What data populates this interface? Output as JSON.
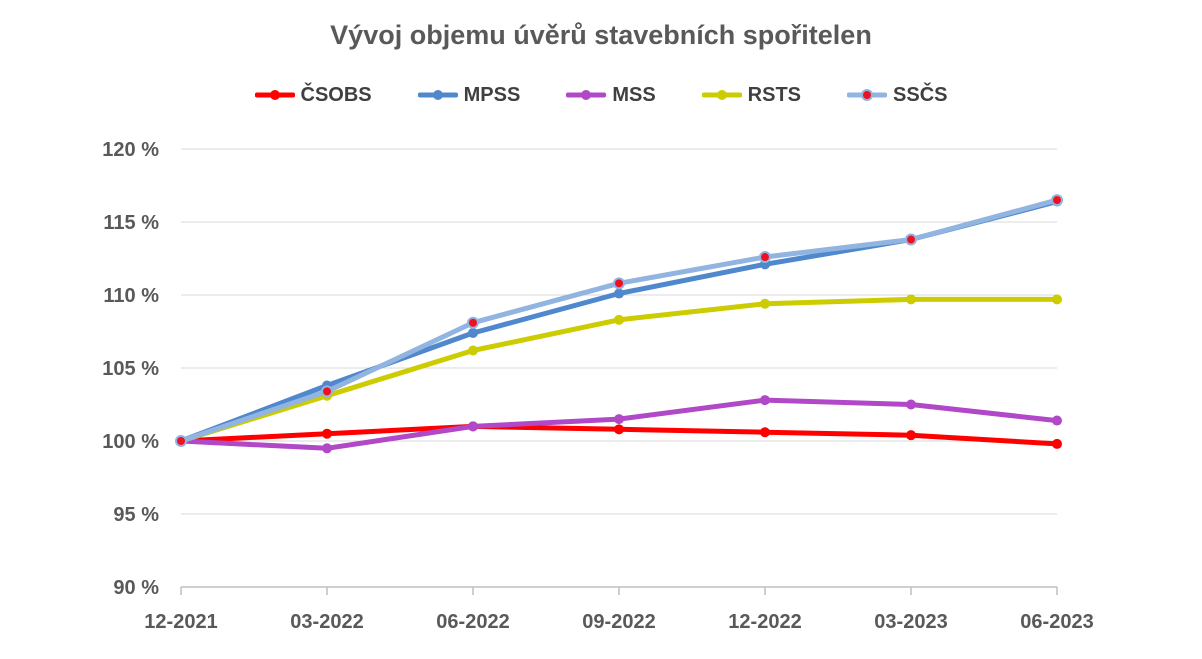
{
  "chart_data": {
    "type": "line",
    "title": "Vývoj objemu úvěrů stavebních spořitelen",
    "xlabel": "",
    "ylabel": "",
    "categories": [
      "12-2021",
      "03-2022",
      "06-2022",
      "09-2022",
      "12-2022",
      "03-2023",
      "06-2023"
    ],
    "ylim": [
      90,
      120
    ],
    "yticks": [
      90,
      95,
      100,
      105,
      110,
      115,
      120
    ],
    "ytick_labels": [
      "90 %",
      "95 %",
      "100 %",
      "105 %",
      "110 %",
      "115 %",
      "120 %"
    ],
    "grid": true,
    "legend_position": "top",
    "series": [
      {
        "name": "ČSOBS",
        "values": [
          100,
          100.5,
          101.0,
          100.8,
          100.6,
          100.4,
          99.8
        ],
        "color": "#ff0000",
        "marker_color": "#ff0000"
      },
      {
        "name": "MPSS",
        "values": [
          100,
          103.8,
          107.4,
          110.1,
          112.1,
          113.8,
          116.4
        ],
        "color": "#4f88cc",
        "marker_color": "#4f88cc"
      },
      {
        "name": "MSS",
        "values": [
          100,
          99.5,
          101.0,
          101.5,
          102.8,
          102.5,
          101.4
        ],
        "color": "#b048c8",
        "marker_color": "#b048c8"
      },
      {
        "name": "RSTS",
        "values": [
          100,
          103.1,
          106.2,
          108.3,
          109.4,
          109.7,
          109.7
        ],
        "color": "#cccc00",
        "marker_color": "#cccc00"
      },
      {
        "name": "SSČS",
        "values": [
          100,
          103.4,
          108.1,
          110.8,
          112.6,
          113.8,
          116.5
        ],
        "color": "#92b4e0",
        "marker_color": "#ee1122"
      }
    ]
  }
}
